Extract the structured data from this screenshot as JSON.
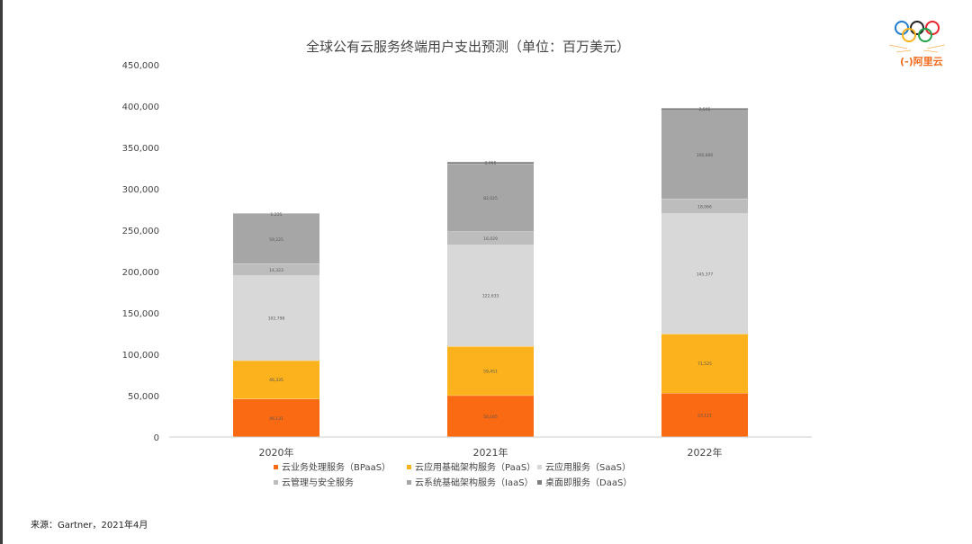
{
  "chart_data": {
    "type": "bar",
    "stacked": true,
    "title": "全球公有云服务终端用户支出预测（单位：百万美元）",
    "categories": [
      "2020年",
      "2021年",
      "2022年"
    ],
    "ylim": [
      0,
      450000
    ],
    "yticks": [
      "0",
      "50,000",
      "100,000",
      "150,000",
      "200,000",
      "250,000",
      "300,000",
      "350,000",
      "400,000",
      "450,000"
    ],
    "ytick_values": [
      0,
      50000,
      100000,
      150000,
      200000,
      250000,
      300000,
      350000,
      400000,
      450000
    ],
    "legend_position": "bottom",
    "series": [
      {
        "name": "云业务处理服务（BPaaS）",
        "color": "#fa6a12",
        "values": [
          46131,
          50165,
          53121
        ],
        "labels": [
          "46,131",
          "50,165",
          "53,121"
        ]
      },
      {
        "name": "云应用基础架构服务（PaaS）",
        "color": "#fbb21c",
        "values": [
          46335,
          59451,
          71525
        ],
        "labels": [
          "46,335",
          "59,451",
          "71,525"
        ]
      },
      {
        "name": "云应用服务（SaaS）",
        "color": "#d8d8d8",
        "values": [
          102798,
          122633,
          145377
        ],
        "labels": [
          "102,798",
          "122,633",
          "145,377"
        ]
      },
      {
        "name": "云管理与安全服务",
        "color": "#bdbdbd",
        "values": [
          14323,
          16029,
          18066
        ],
        "labels": [
          "14,323",
          "16,029",
          "18,066"
        ]
      },
      {
        "name": "云系统基础架构服务（IaaS）",
        "color": "#a6a6a6",
        "values": [
          59225,
          82025,
          106800
        ],
        "labels": [
          "59,225",
          "82,025",
          "106,800"
        ]
      },
      {
        "name": "桌面即服务（DaaS）",
        "color": "#7f7f7f",
        "values": [
          1235,
          2065,
          2505
        ],
        "labels": [
          "1,235",
          "2,065",
          "2,505"
        ]
      }
    ]
  },
  "source": "来源：Gartner，2021年4月",
  "brand": {
    "name": "阿里云"
  }
}
